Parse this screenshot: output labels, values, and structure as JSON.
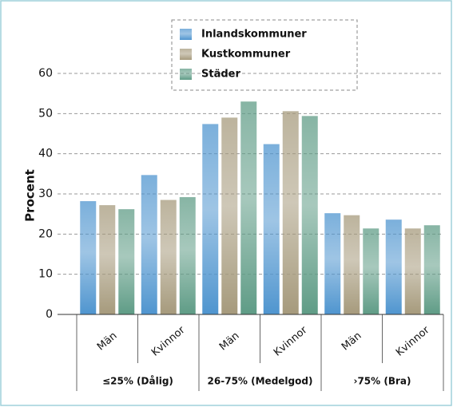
{
  "chart_data": {
    "type": "bar",
    "ylabel": "Procent",
    "groups": [
      {
        "name": "≤25% (Dålig)",
        "categories": [
          "Män",
          "Kvinnor"
        ]
      },
      {
        "name": "26-75% (Medelgod)",
        "categories": [
          "Män",
          "Kvinnor"
        ]
      },
      {
        "name": "›75% (Bra)",
        "categories": [
          "Män",
          "Kvinnor"
        ]
      }
    ],
    "series": [
      {
        "name": "Inlandskommuner",
        "color": "#4f95cf",
        "values": [
          28.2,
          34.7,
          47.4,
          42.4,
          25.2,
          23.6
        ]
      },
      {
        "name": "Kustkommuner",
        "color": "#a69a7c",
        "values": [
          27.2,
          28.5,
          49.0,
          50.6,
          24.7,
          21.4
        ]
      },
      {
        "name": "Städer",
        "color": "#5f9c86",
        "values": [
          26.2,
          29.2,
          53.0,
          49.4,
          21.4,
          22.2
        ]
      }
    ],
    "ylim": [
      0,
      60
    ],
    "yticks": [
      0,
      10,
      20,
      30,
      40,
      50,
      60
    ],
    "grid": true
  }
}
